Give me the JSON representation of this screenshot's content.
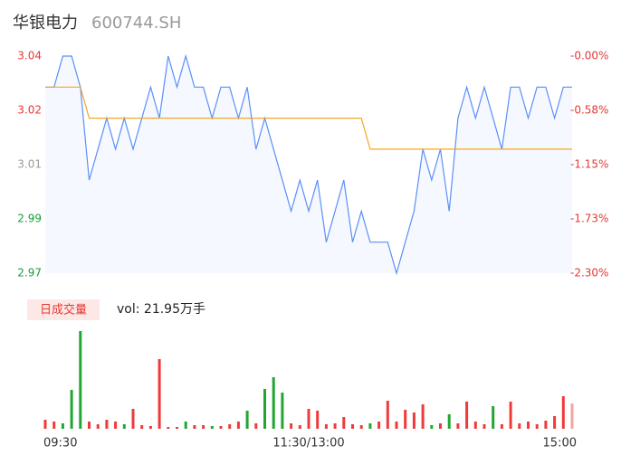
{
  "header": {
    "title": "华银电力",
    "code": "600744.SH"
  },
  "chart_data": [
    {
      "type": "line",
      "ylim": [
        2.97,
        3.04
      ],
      "yticks": [
        3.04,
        {
          "value": 3.0225,
          "label": "3.02"
        },
        {
          "value": 3.005,
          "label": "3.01"
        },
        {
          "value": 2.9875,
          "label": "2.99"
        },
        2.97
      ],
      "ytick_colors": [
        "#e53935",
        "#e53935",
        "#999999",
        "#1a9c3c",
        "#1a9c3c"
      ],
      "y2lim": [
        -2.3,
        0
      ],
      "y2ticks": [
        {
          "value": 0,
          "label": "-0.00%"
        },
        {
          "value": -0.575,
          "label": "-0.58%"
        },
        {
          "value": -1.15,
          "label": "-1.15%"
        },
        {
          "value": -1.725,
          "label": "-1.73%"
        },
        {
          "value": -2.3,
          "label": "-2.30%"
        }
      ],
      "y2tick_color": "#e53935",
      "series": [
        {
          "color": "#5b8ff9",
          "fill": true,
          "values": [
            3.03,
            3.03,
            3.04,
            3.04,
            3.03,
            3.0,
            3.01,
            3.02,
            3.01,
            3.02,
            3.01,
            3.02,
            3.03,
            3.02,
            3.04,
            3.03,
            3.04,
            3.03,
            3.03,
            3.02,
            3.03,
            3.03,
            3.02,
            3.03,
            3.01,
            3.02,
            3.01,
            3.0,
            2.99,
            3.0,
            2.99,
            3.0,
            2.98,
            2.99,
            3.0,
            2.98,
            2.99,
            2.98,
            2.98,
            2.98,
            2.97,
            2.98,
            2.99,
            3.01,
            3.0,
            3.01,
            2.99,
            3.02,
            3.03,
            3.02,
            3.03,
            3.02,
            3.01,
            3.03,
            3.03,
            3.02,
            3.03,
            3.03,
            3.02,
            3.03,
            3.03
          ]
        },
        {
          "color": "#f5a623",
          "fill": false,
          "values": [
            3.03,
            3.03,
            3.03,
            3.03,
            3.03,
            3.02,
            3.02,
            3.02,
            3.02,
            3.02,
            3.02,
            3.02,
            3.02,
            3.02,
            3.02,
            3.02,
            3.02,
            3.02,
            3.02,
            3.02,
            3.02,
            3.02,
            3.02,
            3.02,
            3.02,
            3.02,
            3.02,
            3.02,
            3.02,
            3.02,
            3.02,
            3.02,
            3.02,
            3.02,
            3.02,
            3.02,
            3.02,
            3.01,
            3.01,
            3.01,
            3.01,
            3.01,
            3.01,
            3.01,
            3.01,
            3.01,
            3.01,
            3.01,
            3.01,
            3.01,
            3.01,
            3.01,
            3.01,
            3.01,
            3.01,
            3.01,
            3.01,
            3.01,
            3.01,
            3.01,
            3.01
          ]
        }
      ]
    },
    {
      "type": "bar",
      "legend": "日成交量",
      "vol_label": "vol: 21.95万手",
      "categories": [
        "09:30",
        null,
        null,
        null,
        null,
        null,
        null,
        null,
        null,
        null,
        null,
        null,
        null,
        null,
        null,
        null,
        null,
        null,
        null,
        null,
        null,
        null,
        null,
        null,
        null,
        null,
        null,
        null,
        null,
        null,
        "11:30/13:00",
        null,
        null,
        null,
        null,
        null,
        null,
        null,
        null,
        null,
        null,
        null,
        null,
        null,
        null,
        null,
        null,
        null,
        null,
        null,
        null,
        null,
        null,
        null,
        null,
        null,
        null,
        null,
        null,
        null,
        "15:00"
      ],
      "values": [
        700,
        560,
        420,
        3010,
        7560,
        560,
        350,
        700,
        560,
        350,
        1540,
        280,
        210,
        5390,
        140,
        140,
        560,
        280,
        280,
        210,
        210,
        350,
        560,
        1400,
        420,
        3080,
        3990,
        2800,
        420,
        280,
        1540,
        1400,
        350,
        420,
        910,
        350,
        280,
        420,
        560,
        2170,
        560,
        1470,
        1260,
        1890,
        280,
        420,
        1120,
        420,
        2100,
        560,
        350,
        1750,
        350,
        2100,
        420,
        560,
        350,
        630,
        980,
        2520,
        1960
      ],
      "colors": [
        "#f03a3a",
        "#f03a3a",
        "#22a633",
        "#22a633",
        "#22a633",
        "#f03a3a",
        "#f03a3a",
        "#f03a3a",
        "#f03a3a",
        "#22a633",
        "#f03a3a",
        "#f03a3a",
        "#f03a3a",
        "#f03a3a",
        "#f03a3a",
        "#f03a3a",
        "#22a633",
        "#f03a3a",
        "#f03a3a",
        "#22a633",
        "#f03a3a",
        "#f03a3a",
        "#f03a3a",
        "#22a633",
        "#f03a3a",
        "#22a633",
        "#22a633",
        "#22a633",
        "#f03a3a",
        "#f03a3a",
        "#f03a3a",
        "#f03a3a",
        "#f03a3a",
        "#f03a3a",
        "#f03a3a",
        "#f03a3a",
        "#f03a3a",
        "#22a633",
        "#f03a3a",
        "#f03a3a",
        "#f03a3a",
        "#f03a3a",
        "#f03a3a",
        "#f03a3a",
        "#22a633",
        "#f03a3a",
        "#22a633",
        "#f03a3a",
        "#f03a3a",
        "#f03a3a",
        "#f03a3a",
        "#22a633",
        "#f03a3a",
        "#f03a3a",
        "#f03a3a",
        "#f03a3a",
        "#f03a3a",
        "#f03a3a",
        "#f03a3a",
        "#f03a3a",
        "#f4a3a3"
      ]
    }
  ]
}
